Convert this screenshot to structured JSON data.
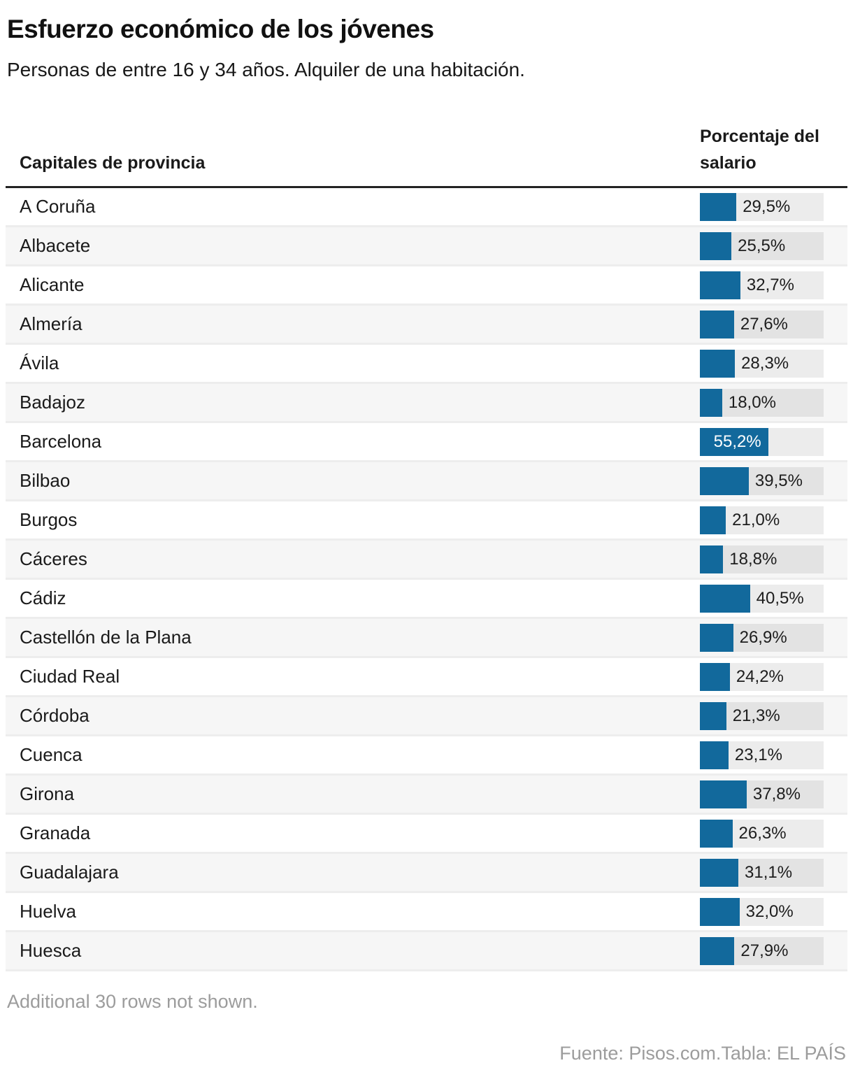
{
  "header": {
    "title": "Esfuerzo económico de los jóvenes",
    "subtitle": "Personas de entre 16 y 34 años. Alquiler de una habitación."
  },
  "table": {
    "columns": [
      "Capitales de provincia",
      "Porcentaje del salario"
    ],
    "note": "Additional 30 rows not shown.",
    "rows": [
      {
        "city": "A Coruña",
        "value": 29.5,
        "label": "29,5%"
      },
      {
        "city": "Albacete",
        "value": 25.5,
        "label": "25,5%"
      },
      {
        "city": "Alicante",
        "value": 32.7,
        "label": "32,7%"
      },
      {
        "city": "Almería",
        "value": 27.6,
        "label": "27,6%"
      },
      {
        "city": "Ávila",
        "value": 28.3,
        "label": "28,3%"
      },
      {
        "city": "Badajoz",
        "value": 18.0,
        "label": "18,0%"
      },
      {
        "city": "Barcelona",
        "value": 55.2,
        "label": "55,2%"
      },
      {
        "city": "Bilbao",
        "value": 39.5,
        "label": "39,5%"
      },
      {
        "city": "Burgos",
        "value": 21.0,
        "label": "21,0%"
      },
      {
        "city": "Cáceres",
        "value": 18.8,
        "label": "18,8%"
      },
      {
        "city": "Cádiz",
        "value": 40.5,
        "label": "40,5%"
      },
      {
        "city": "Castellón de la Plana",
        "value": 26.9,
        "label": "26,9%"
      },
      {
        "city": "Ciudad Real",
        "value": 24.2,
        "label": "24,2%"
      },
      {
        "city": "Córdoba",
        "value": 21.3,
        "label": "21,3%"
      },
      {
        "city": "Cuenca",
        "value": 23.1,
        "label": "23,1%"
      },
      {
        "city": "Girona",
        "value": 37.8,
        "label": "37,8%"
      },
      {
        "city": "Granada",
        "value": 26.3,
        "label": "26,3%"
      },
      {
        "city": "Guadalajara",
        "value": 31.1,
        "label": "31,1%"
      },
      {
        "city": "Huelva",
        "value": 32.0,
        "label": "32,0%"
      },
      {
        "city": "Huesca",
        "value": 27.9,
        "label": "27,9%"
      }
    ]
  },
  "footer": {
    "source": "Fuente: Pisos.com.Tabla: EL PAÍS"
  },
  "colors": {
    "bar": "#12699c",
    "bar_track": "rgba(0,0,0,0.075)",
    "row_alt": "#f6f6f6",
    "row_separator": "#ededed",
    "header_rule": "#222222",
    "text": "#1a1a1a",
    "muted_text": "#9c9c9c",
    "value_inside_text": "#ffffff"
  },
  "chart_data": {
    "type": "bar",
    "orientation": "horizontal",
    "title": "Esfuerzo económico de los jóvenes",
    "subtitle": "Personas de entre 16 y 34 años. Alquiler de una habitación.",
    "xlabel": "Porcentaje del salario",
    "ylabel": "Capitales de provincia",
    "xlim": [
      0,
      100
    ],
    "grid": false,
    "legend": false,
    "value_format": "percent, comma decimal",
    "categories": [
      "A Coruña",
      "Albacete",
      "Alicante",
      "Almería",
      "Ávila",
      "Badajoz",
      "Barcelona",
      "Bilbao",
      "Burgos",
      "Cáceres",
      "Cádiz",
      "Castellón de la Plana",
      "Ciudad Real",
      "Córdoba",
      "Cuenca",
      "Girona",
      "Granada",
      "Guadalajara",
      "Huelva",
      "Huesca"
    ],
    "values": [
      29.5,
      25.5,
      32.7,
      27.6,
      28.3,
      18.0,
      55.2,
      39.5,
      21.0,
      18.8,
      40.5,
      26.9,
      24.2,
      21.3,
      23.1,
      37.8,
      26.3,
      31.1,
      32.0,
      27.9
    ],
    "note": "Additional 30 rows not shown.",
    "source": "Fuente: Pisos.com.Tabla: EL PAÍS"
  }
}
